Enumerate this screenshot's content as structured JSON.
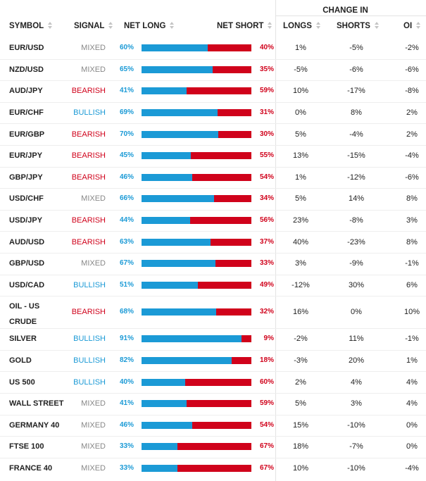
{
  "header": {
    "change_in": "CHANGE IN",
    "symbol": "SYMBOL",
    "signal": "SIGNAL",
    "net_long": "NET LONG",
    "net_short": "NET SHORT",
    "longs": "LONGS",
    "shorts": "SHORTS",
    "oi": "OI"
  },
  "colors": {
    "long": "#1b9ad6",
    "short": "#d0021b",
    "mixed": "#888888"
  },
  "rows": [
    {
      "symbol": [
        "EUR/USD"
      ],
      "signal": "MIXED",
      "net_long": "60%",
      "net_short": "40%",
      "long_fraction": 0.6,
      "longs": "1%",
      "shorts": "-5%",
      "oi": "-2%"
    },
    {
      "symbol": [
        "NZD/USD"
      ],
      "signal": "MIXED",
      "net_long": "65%",
      "net_short": "35%",
      "long_fraction": 0.65,
      "longs": "-5%",
      "shorts": "-6%",
      "oi": "-6%"
    },
    {
      "symbol": [
        "AUD/JPY"
      ],
      "signal": "BEARISH",
      "net_long": "41%",
      "net_short": "59%",
      "long_fraction": 0.41,
      "longs": "10%",
      "shorts": "-17%",
      "oi": "-8%"
    },
    {
      "symbol": [
        "EUR/CHF"
      ],
      "signal": "BULLISH",
      "net_long": "69%",
      "net_short": "31%",
      "long_fraction": 0.69,
      "longs": "0%",
      "shorts": "8%",
      "oi": "2%"
    },
    {
      "symbol": [
        "EUR/GBP"
      ],
      "signal": "BEARISH",
      "net_long": "70%",
      "net_short": "30%",
      "long_fraction": 0.7,
      "longs": "5%",
      "shorts": "-4%",
      "oi": "2%"
    },
    {
      "symbol": [
        "EUR/JPY"
      ],
      "signal": "BEARISH",
      "net_long": "45%",
      "net_short": "55%",
      "long_fraction": 0.45,
      "longs": "13%",
      "shorts": "-15%",
      "oi": "-4%"
    },
    {
      "symbol": [
        "GBP/JPY"
      ],
      "signal": "BEARISH",
      "net_long": "46%",
      "net_short": "54%",
      "long_fraction": 0.46,
      "longs": "1%",
      "shorts": "-12%",
      "oi": "-6%"
    },
    {
      "symbol": [
        "USD/CHF"
      ],
      "signal": "MIXED",
      "net_long": "66%",
      "net_short": "34%",
      "long_fraction": 0.66,
      "longs": "5%",
      "shorts": "14%",
      "oi": "8%"
    },
    {
      "symbol": [
        "USD/JPY"
      ],
      "signal": "BEARISH",
      "net_long": "44%",
      "net_short": "56%",
      "long_fraction": 0.44,
      "longs": "23%",
      "shorts": "-8%",
      "oi": "3%"
    },
    {
      "symbol": [
        "AUD/USD"
      ],
      "signal": "BEARISH",
      "net_long": "63%",
      "net_short": "37%",
      "long_fraction": 0.63,
      "longs": "40%",
      "shorts": "-23%",
      "oi": "8%"
    },
    {
      "symbol": [
        "GBP/USD"
      ],
      "signal": "MIXED",
      "net_long": "67%",
      "net_short": "33%",
      "long_fraction": 0.67,
      "longs": "3%",
      "shorts": "-9%",
      "oi": "-1%"
    },
    {
      "symbol": [
        "USD/CAD"
      ],
      "signal": "BULLISH",
      "net_long": "51%",
      "net_short": "49%",
      "long_fraction": 0.51,
      "longs": "-12%",
      "shorts": "30%",
      "oi": "6%"
    },
    {
      "symbol": [
        "OIL - US",
        "CRUDE"
      ],
      "signal": "BEARISH",
      "net_long": "68%",
      "net_short": "32%",
      "long_fraction": 0.68,
      "longs": "16%",
      "shorts": "0%",
      "oi": "10%"
    },
    {
      "symbol": [
        "SILVER"
      ],
      "signal": "BULLISH",
      "net_long": "91%",
      "net_short": "9%",
      "long_fraction": 0.91,
      "longs": "-2%",
      "shorts": "11%",
      "oi": "-1%"
    },
    {
      "symbol": [
        "GOLD"
      ],
      "signal": "BULLISH",
      "net_long": "82%",
      "net_short": "18%",
      "long_fraction": 0.82,
      "longs": "-3%",
      "shorts": "20%",
      "oi": "1%"
    },
    {
      "symbol": [
        "US 500"
      ],
      "signal": "BULLISH",
      "net_long": "40%",
      "net_short": "60%",
      "long_fraction": 0.4,
      "longs": "2%",
      "shorts": "4%",
      "oi": "4%"
    },
    {
      "symbol": [
        "WALL STREET"
      ],
      "signal": "MIXED",
      "net_long": "41%",
      "net_short": "59%",
      "long_fraction": 0.41,
      "longs": "5%",
      "shorts": "3%",
      "oi": "4%"
    },
    {
      "symbol": [
        "GERMANY 40"
      ],
      "signal": "MIXED",
      "net_long": "46%",
      "net_short": "54%",
      "long_fraction": 0.46,
      "longs": "15%",
      "shorts": "-10%",
      "oi": "0%"
    },
    {
      "symbol": [
        "FTSE 100"
      ],
      "signal": "MIXED",
      "net_long": "33%",
      "net_short": "67%",
      "long_fraction": 0.33,
      "longs": "18%",
      "shorts": "-7%",
      "oi": "0%"
    },
    {
      "symbol": [
        "FRANCE 40"
      ],
      "signal": "MIXED",
      "net_long": "33%",
      "net_short": "67%",
      "long_fraction": 0.33,
      "longs": "10%",
      "shorts": "-10%",
      "oi": "-4%"
    }
  ]
}
